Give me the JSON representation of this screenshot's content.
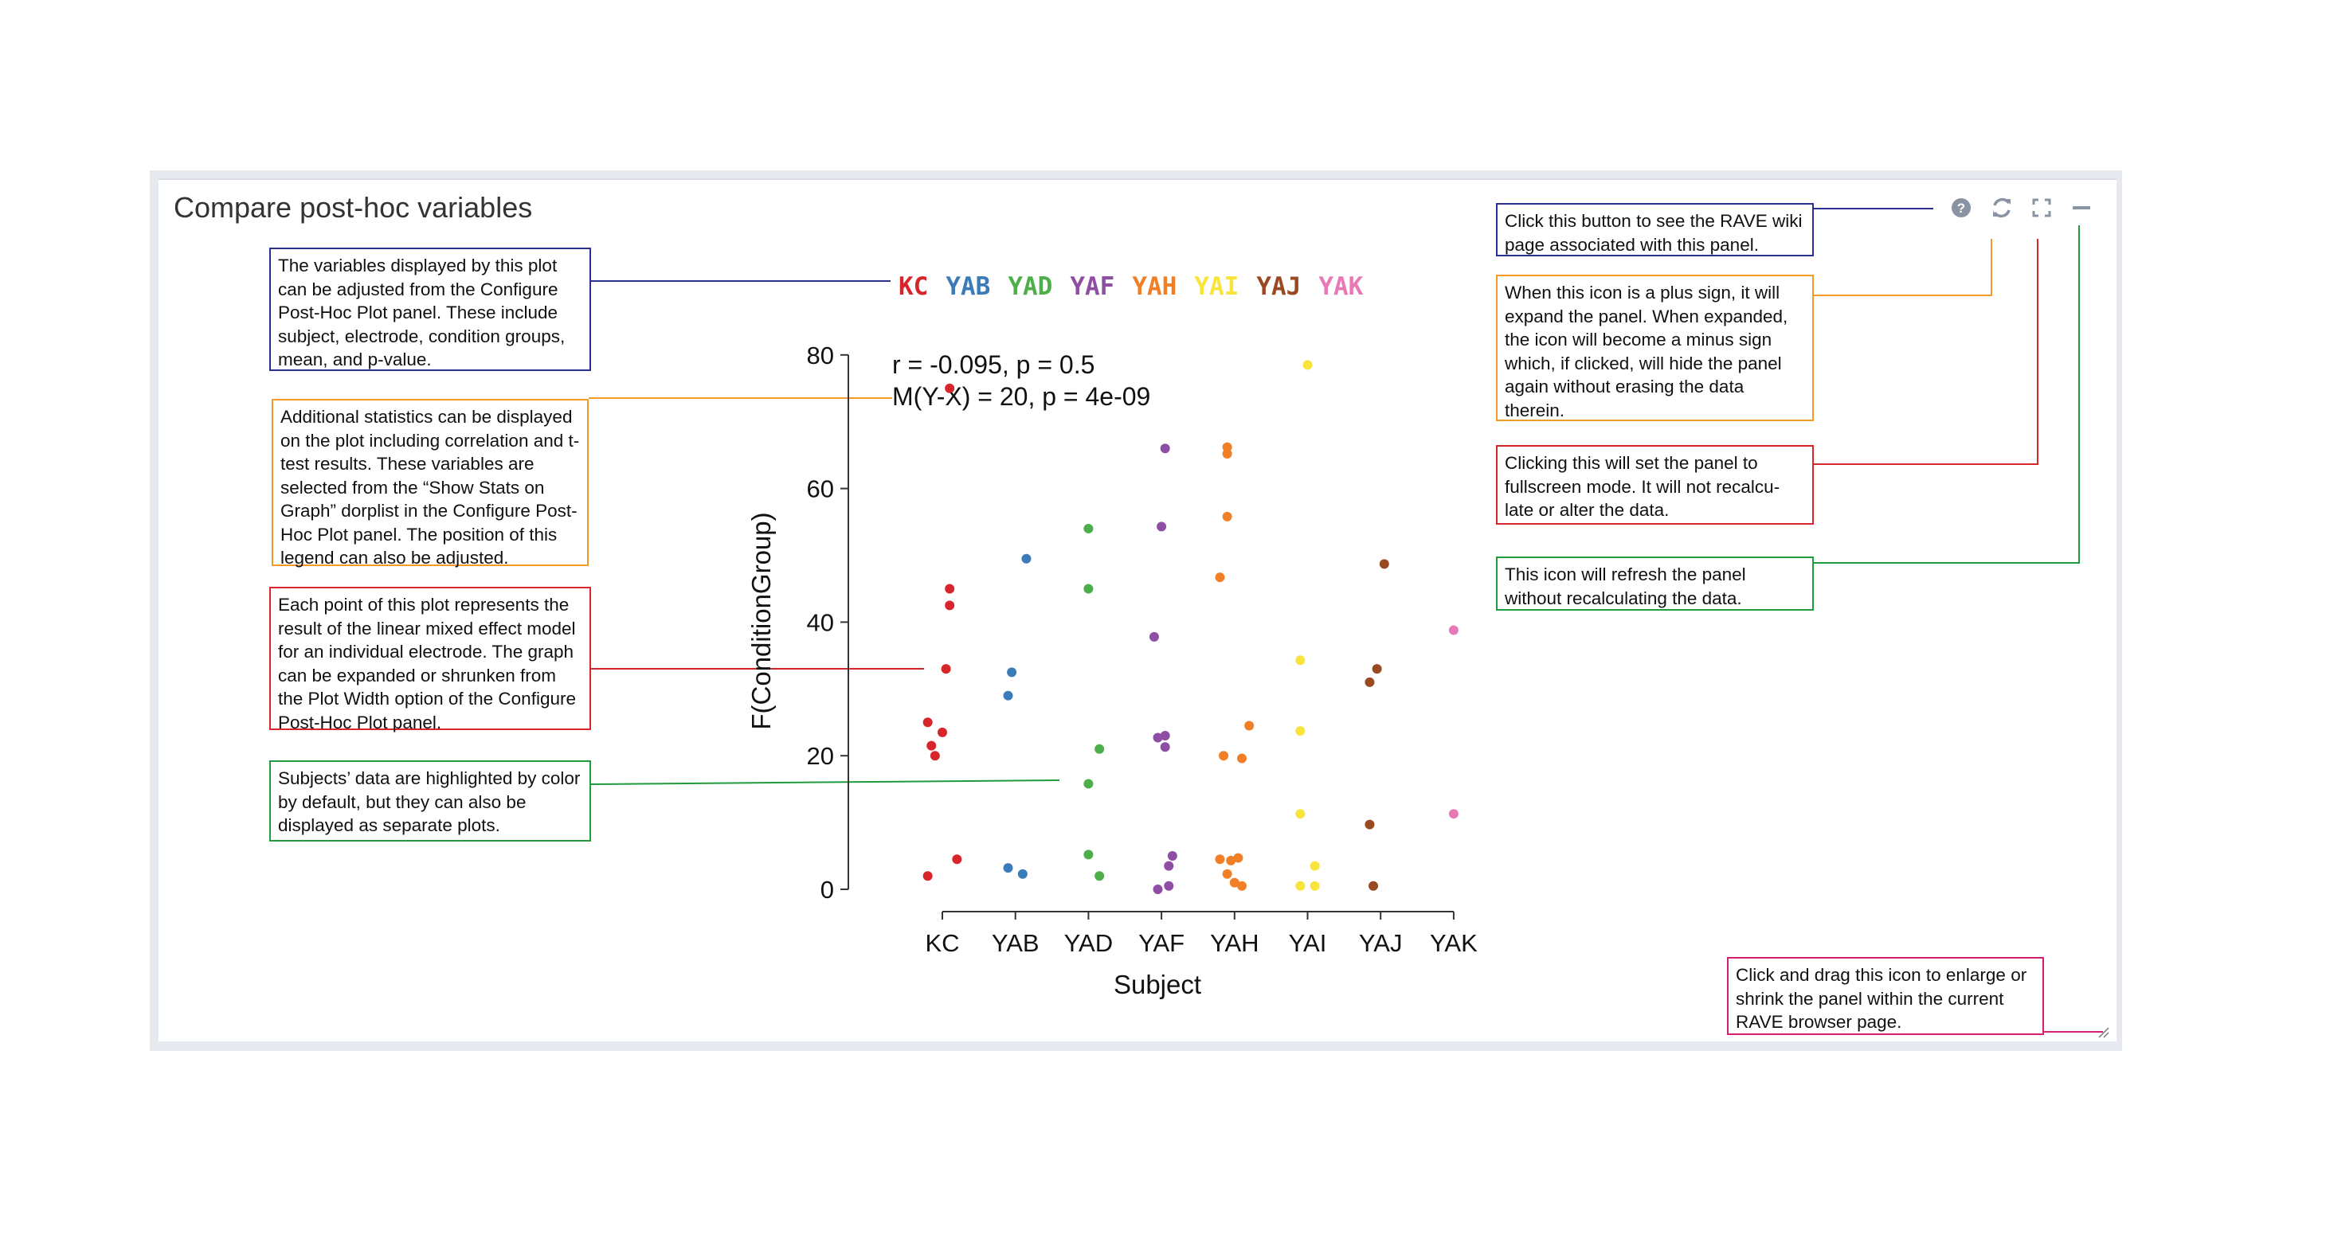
{
  "panel": {
    "title": "Compare post-hoc variables"
  },
  "header_icons": [
    "help-icon",
    "refresh-icon",
    "expand-icon",
    "minimize-icon"
  ],
  "annotations": {
    "left": [
      {
        "text": "The variables displayed by this plot can be adjusted from the Configure Post-Hoc Plot panel. These include subject, electrode, condition groups, mean, and p-value.",
        "color": "#2b2f8f"
      },
      {
        "text": "Additional statistics can be displayed on the plot including correlation and t-test results. These variables are selected from the “Show Stats on Graph” dorplist in the Configure Post-Hoc Plot panel. The position of this legend can also be adjusted.",
        "color": "#f39a2a"
      },
      {
        "text": "Each point of this plot represents the result of the linear mixed effect model for an individual electrode. The graph can be expanded or shrunken from the Plot Width option of the Configure Post-Hoc Plot panel.",
        "color": "#d7262b"
      },
      {
        "text": "Subjects’ data are highlighted by color by default, but they can also be displayed as separate plots.",
        "color": "#1f9a3d"
      }
    ],
    "right": [
      {
        "text": "Click this button to see the RAVE wiki page associated with this panel.",
        "color": "#2b2f8f"
      },
      {
        "text": "When this icon is a plus sign, it will expand the panel. When expanded, the icon will become a minus sign which, if clicked, will hide the panel again without erasing the data therein.",
        "color": "#f39a2a"
      },
      {
        "text": "Clicking this will set the panel to fullscreen mode. It will not recalcu-late or alter the data.",
        "color": "#d7262b"
      },
      {
        "text": "This icon will refresh the panel without recalculating the data.",
        "color": "#1f9a3d"
      },
      {
        "text": "Click and drag this icon to enlarge or shrink the panel within the current RAVE browser page.",
        "color": "#d6206f"
      }
    ]
  },
  "stats_legend": {
    "line1": "r = -0.095, p = 0.5",
    "line2": "M(Y-X) = 20, p = 4e-09"
  },
  "chart_data": {
    "type": "scatter",
    "title": "",
    "xlabel": "Subject",
    "ylabel": "F(ConditionGroup)",
    "ylim": [
      0,
      80
    ],
    "yticks": [
      "0",
      "20",
      "40",
      "60",
      "80"
    ],
    "categories": [
      "KC",
      "YAB",
      "YAD",
      "YAF",
      "YAH",
      "YAI",
      "YAJ",
      "YAK"
    ],
    "colors": [
      "#d7262b",
      "#3a7bb8",
      "#4daf4a",
      "#8e4ea3",
      "#f07f27",
      "#f8e43a",
      "#9a4a22",
      "#e77ab6"
    ],
    "series": [
      {
        "name": "KC",
        "points": [
          [
            -0.2,
            2
          ],
          [
            0.2,
            4.5
          ],
          [
            -0.1,
            20
          ],
          [
            -0.15,
            21.5
          ],
          [
            0.0,
            23.5
          ],
          [
            -0.2,
            25
          ],
          [
            0.05,
            33
          ],
          [
            0.1,
            42.5
          ],
          [
            0.1,
            45
          ],
          [
            0.1,
            75
          ]
        ]
      },
      {
        "name": "YAB",
        "points": [
          [
            -0.1,
            3.2
          ],
          [
            0.1,
            2.3
          ],
          [
            -0.1,
            29
          ],
          [
            -0.05,
            32.5
          ],
          [
            0.15,
            49.5
          ]
        ]
      },
      {
        "name": "YAD",
        "points": [
          [
            0.0,
            5.2
          ],
          [
            0.15,
            2
          ],
          [
            0.0,
            15.8
          ],
          [
            0.15,
            21
          ],
          [
            0.0,
            45
          ],
          [
            0.0,
            54
          ]
        ]
      },
      {
        "name": "YAF",
        "points": [
          [
            -0.05,
            0
          ],
          [
            0.1,
            0.5
          ],
          [
            0.1,
            3.5
          ],
          [
            0.15,
            5
          ],
          [
            -0.05,
            22.7
          ],
          [
            0.05,
            23
          ],
          [
            0.05,
            21.3
          ],
          [
            -0.1,
            37.8
          ],
          [
            0.0,
            54.3
          ],
          [
            0.05,
            66
          ]
        ]
      },
      {
        "name": "YAH",
        "points": [
          [
            -0.2,
            4.5
          ],
          [
            -0.05,
            4.3
          ],
          [
            0.05,
            4.7
          ],
          [
            -0.1,
            2.3
          ],
          [
            0.0,
            1
          ],
          [
            0.1,
            0.5
          ],
          [
            -0.15,
            20
          ],
          [
            0.1,
            19.6
          ],
          [
            0.2,
            24.5
          ],
          [
            -0.2,
            46.7
          ],
          [
            -0.1,
            55.8
          ],
          [
            -0.1,
            65.2
          ],
          [
            -0.1,
            66.2
          ]
        ]
      },
      {
        "name": "YAI",
        "points": [
          [
            -0.1,
            0.5
          ],
          [
            0.1,
            0.5
          ],
          [
            0.1,
            3.5
          ],
          [
            -0.1,
            11.3
          ],
          [
            -0.1,
            23.7
          ],
          [
            -0.1,
            34.3
          ],
          [
            0.0,
            78.5
          ]
        ]
      },
      {
        "name": "YAJ",
        "points": [
          [
            -0.1,
            0.5
          ],
          [
            -0.15,
            9.7
          ],
          [
            -0.15,
            31
          ],
          [
            -0.05,
            33
          ],
          [
            0.05,
            48.7
          ]
        ]
      },
      {
        "name": "YAK",
        "points": [
          [
            0.0,
            11.3
          ],
          [
            0.0,
            38.8
          ]
        ]
      }
    ]
  }
}
